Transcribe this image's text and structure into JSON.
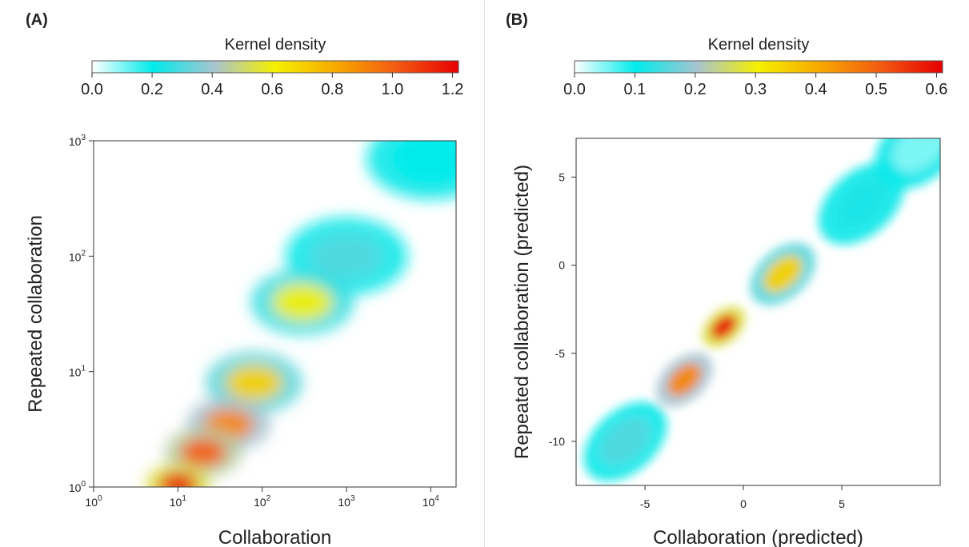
{
  "panels": [
    {
      "label": "(A)"
    },
    {
      "label": "(B)"
    }
  ],
  "colors": {
    "colormap": [
      "#ffffff",
      "#00ebeb",
      "#a8c4d0",
      "#f5f000",
      "#f7a800",
      "#f25a12",
      "#e60000"
    ]
  },
  "chart_data": [
    {
      "type": "heatmap",
      "colorbar": {
        "label": "Kernel density",
        "ticks": [
          "0.0",
          "0.2",
          "0.4",
          "0.6",
          "0.8",
          "1.0",
          "1.2"
        ],
        "range": [
          0,
          1.22
        ]
      },
      "xlabel": "Collaboration",
      "ylabel": "Repeated collaboration",
      "xscale": "log",
      "yscale": "log",
      "xlim": [
        1,
        20000
      ],
      "ylim": [
        1,
        1000
      ],
      "x_ticks": [
        {
          "base": "10",
          "exp": "0",
          "value": 1
        },
        {
          "base": "10",
          "exp": "1",
          "value": 10
        },
        {
          "base": "10",
          "exp": "2",
          "value": 100
        },
        {
          "base": "10",
          "exp": "3",
          "value": 1000
        },
        {
          "base": "10",
          "exp": "4",
          "value": 10000
        }
      ],
      "y_ticks": [
        {
          "base": "10",
          "exp": "0",
          "value": 1
        },
        {
          "base": "10",
          "exp": "1",
          "value": 10
        },
        {
          "base": "10",
          "exp": "2",
          "value": 100
        },
        {
          "base": "10",
          "exp": "3",
          "value": 1000
        }
      ],
      "density_regions": [
        {
          "x": 10,
          "y": 1.05,
          "density": 1.2
        },
        {
          "x": 20,
          "y": 2.0,
          "density": 1.0
        },
        {
          "x": 40,
          "y": 3.5,
          "density": 0.9
        },
        {
          "x": 80,
          "y": 8,
          "density": 0.7
        },
        {
          "x": 300,
          "y": 40,
          "density": 0.6
        },
        {
          "x": 1000,
          "y": 100,
          "density": 0.3
        },
        {
          "x": 10000,
          "y": 700,
          "density": 0.2
        }
      ]
    },
    {
      "type": "heatmap",
      "colorbar": {
        "label": "Kernel density",
        "ticks": [
          "0.0",
          "0.1",
          "0.2",
          "0.3",
          "0.4",
          "0.5",
          "0.6"
        ],
        "range": [
          0,
          0.61
        ]
      },
      "xlabel": "Collaboration (predicted)",
      "ylabel": "Repeated collaboration (predicted)",
      "xlim": [
        -8.5,
        10
      ],
      "ylim": [
        -12.5,
        7.2
      ],
      "x_ticks": [
        {
          "label": "-5",
          "value": -5
        },
        {
          "label": "0",
          "value": 0
        },
        {
          "label": "5",
          "value": 5
        }
      ],
      "y_ticks": [
        {
          "label": "5",
          "value": 5
        },
        {
          "label": "0",
          "value": 0
        },
        {
          "label": "-5",
          "value": -5
        },
        {
          "label": "-10",
          "value": -10
        }
      ],
      "density_regions": [
        {
          "x": -1,
          "y": -3.5,
          "density": 0.6
        },
        {
          "x": -3,
          "y": -6.5,
          "density": 0.45
        },
        {
          "x": 2,
          "y": -0.5,
          "density": 0.35
        },
        {
          "x": -6,
          "y": -10,
          "density": 0.15
        },
        {
          "x": 6,
          "y": 3.5,
          "density": 0.12
        },
        {
          "x": 9,
          "y": 6.8,
          "density": 0.05
        }
      ]
    }
  ]
}
